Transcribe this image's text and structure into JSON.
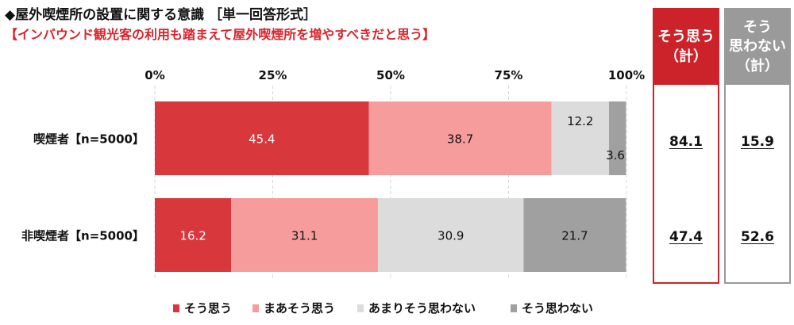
{
  "title": "◆屋外喫煙所の設置に関する意識 ［単一回答形式］",
  "subtitle": "【インバウンド観光客の利用も踏まえて屋外喫煙所を増やすべきだと思う】",
  "summary": {
    "agree": {
      "header": "そう思う\n（計）",
      "values": [
        "84.1",
        "47.4"
      ]
    },
    "disagree": {
      "header": "そう\n思わない\n（計）",
      "values": [
        "15.9",
        "52.6"
      ]
    }
  },
  "chart_data": {
    "type": "bar",
    "orientation": "horizontal",
    "stacked": true,
    "categories": [
      "喫煙者【n=5000】",
      "非喫煙者【n=5000】"
    ],
    "series": [
      {
        "name": "そう思う",
        "color": "#d8383c",
        "values": [
          45.4,
          16.2
        ]
      },
      {
        "name": "まあそう思う",
        "color": "#f79c9c",
        "values": [
          38.7,
          31.1
        ]
      },
      {
        "name": "あまりそう思わない",
        "color": "#dcdcdc",
        "values": [
          12.2,
          30.9
        ]
      },
      {
        "name": "そう思わない",
        "color": "#a0a0a0",
        "values": [
          3.6,
          21.7
        ]
      }
    ],
    "xlim": [
      0,
      100
    ],
    "xticks": [
      "0%",
      "25%",
      "50%",
      "75%",
      "100%"
    ],
    "legend": "bottom"
  }
}
